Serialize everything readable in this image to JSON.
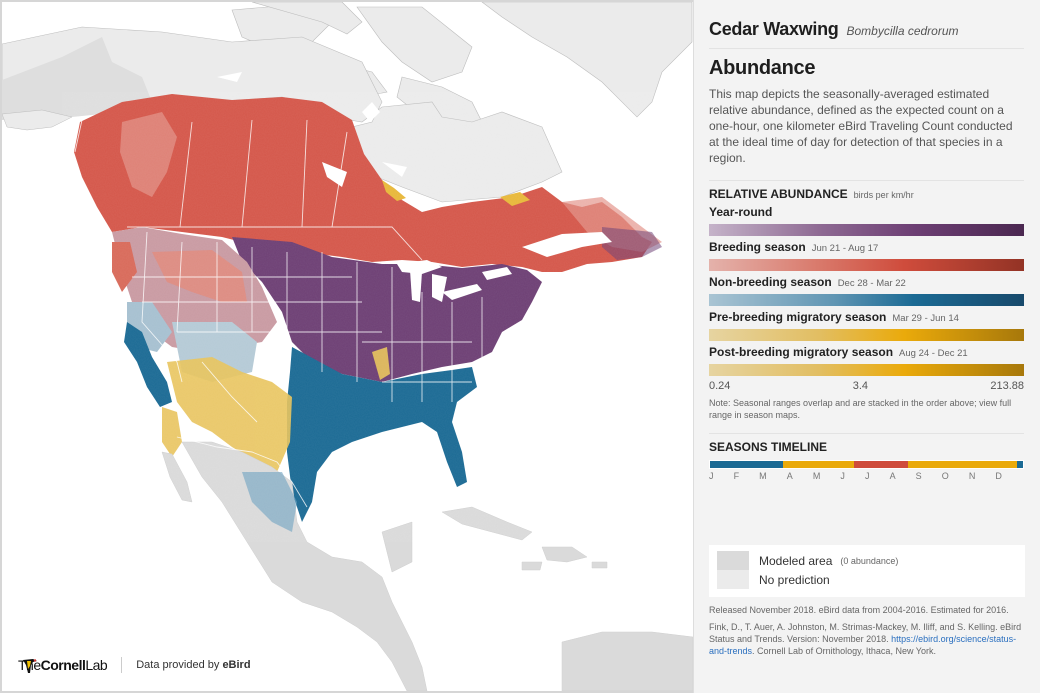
{
  "header": {
    "common_name": "Cedar Waxwing",
    "scientific_name": "Bombycilla cedrorum"
  },
  "section": {
    "title": "Abundance",
    "description": "This map depicts the seasonally-averaged estimated relative abundance, defined as the expected count on a one-hour, one kilometer eBird Traveling Count conducted at the ideal time of day for detection of that species in a region."
  },
  "relative_abundance": {
    "title": "RELATIVE ABUNDANCE",
    "unit": "birds per km/hr",
    "seasons": [
      {
        "name": "Year-round",
        "dates": "",
        "color": "#6d3f74"
      },
      {
        "name": "Breeding season",
        "dates": "Jun 21 - Aug 17",
        "color": "#cf4c3c"
      },
      {
        "name": "Non-breeding season",
        "dates": "Dec 28 - Mar 22",
        "color": "#1b6a94"
      },
      {
        "name": "Pre-breeding migratory season",
        "dates": "Mar 29 - Jun 14",
        "color": "#eaaa0b"
      },
      {
        "name": "Post-breeding migratory season",
        "dates": "Aug 24 - Dec 21",
        "color": "#eaaa0b"
      }
    ],
    "scale": {
      "min": "0.24",
      "mid": "3.4",
      "max": "213.88"
    },
    "note": "Note: Seasonal ranges overlap and are stacked in the order above; view full range in season maps."
  },
  "timeline": {
    "title": "SEASONS TIMELINE",
    "segments": [
      {
        "season": "Non-breeding",
        "color": "#1b6a94",
        "width_pct": 23.2
      },
      {
        "season": "Pre-breeding migratory",
        "color": "#eaaa0b",
        "width_pct": 22.8
      },
      {
        "season": "Breeding",
        "color": "#cf4c3c",
        "width_pct": 17.3
      },
      {
        "season": "Post-breeding migratory",
        "color": "#eaaa0b",
        "width_pct": 34.7
      },
      {
        "season": "Non-breeding",
        "color": "#1b6a94",
        "width_pct": 2.0
      }
    ],
    "months": [
      "J",
      "F",
      "M",
      "A",
      "M",
      "J",
      "J",
      "A",
      "S",
      "O",
      "N",
      "D"
    ]
  },
  "legend": {
    "modeled_area": {
      "label": "Modeled area",
      "sub": "(0 abundance)",
      "color": "#dadada"
    },
    "no_prediction": {
      "label": "No prediction",
      "color": "#ebebeb"
    }
  },
  "credits": {
    "release": "Released November 2018. eBird data from 2004-2016. Estimated for 2016.",
    "citation_pre": "Fink, D., T. Auer, A. Johnston, M. Strimas-Mackey, M. Iliff, and S. Kelling. eBird Status and Trends. Version: November 2018. ",
    "citation_link": "https://ebird.org/science/status-and-trends",
    "citation_post": ". Cornell Lab of Ornithology, Ithaca, New York."
  },
  "footer": {
    "logo_the": "The",
    "logo_cornell": "Cornell",
    "logo_lab": "Lab",
    "credit_prefix": "Data provided by ",
    "credit_brand": "eBird"
  },
  "map": {
    "region": "North America",
    "colors": {
      "ocean": "#ffffff",
      "land_no_prediction": "#ebebeb",
      "modeled_area": "#dadada",
      "year_round": "#6d3f74",
      "breeding": "#d4574a",
      "non_breeding": "#1b6a94",
      "migration": "#e8c35a",
      "borders": "#ffffff"
    }
  }
}
